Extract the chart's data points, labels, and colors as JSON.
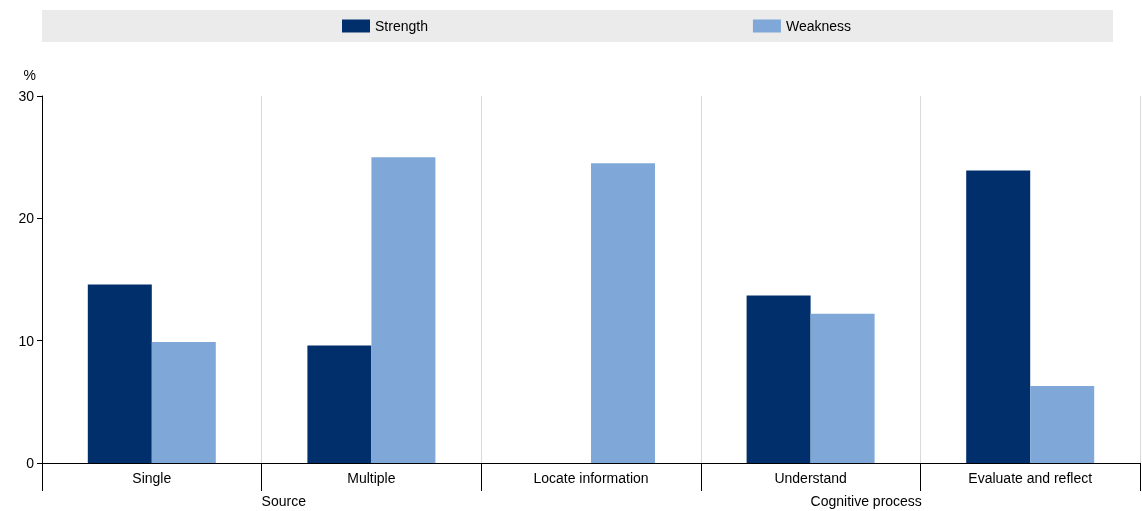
{
  "chart_data": {
    "type": "bar",
    "ylabel": "%",
    "categories": [
      "Single",
      "Multiple",
      "Locate information",
      "Understand",
      "Evaluate and reflect"
    ],
    "series": [
      {
        "name": "Strength",
        "color": "#002f6c",
        "values": [
          14.6,
          9.6,
          null,
          13.7,
          23.9
        ]
      },
      {
        "name": "Weakness",
        "color": "#7fa8d9",
        "values": [
          9.9,
          25.0,
          24.5,
          12.2,
          6.3
        ]
      }
    ],
    "ylim": [
      0,
      30
    ],
    "yticks": [
      0,
      10,
      20,
      30
    ],
    "grid": "x",
    "legend": "top",
    "annotations": [
      "Source",
      "Cognitive process"
    ]
  }
}
